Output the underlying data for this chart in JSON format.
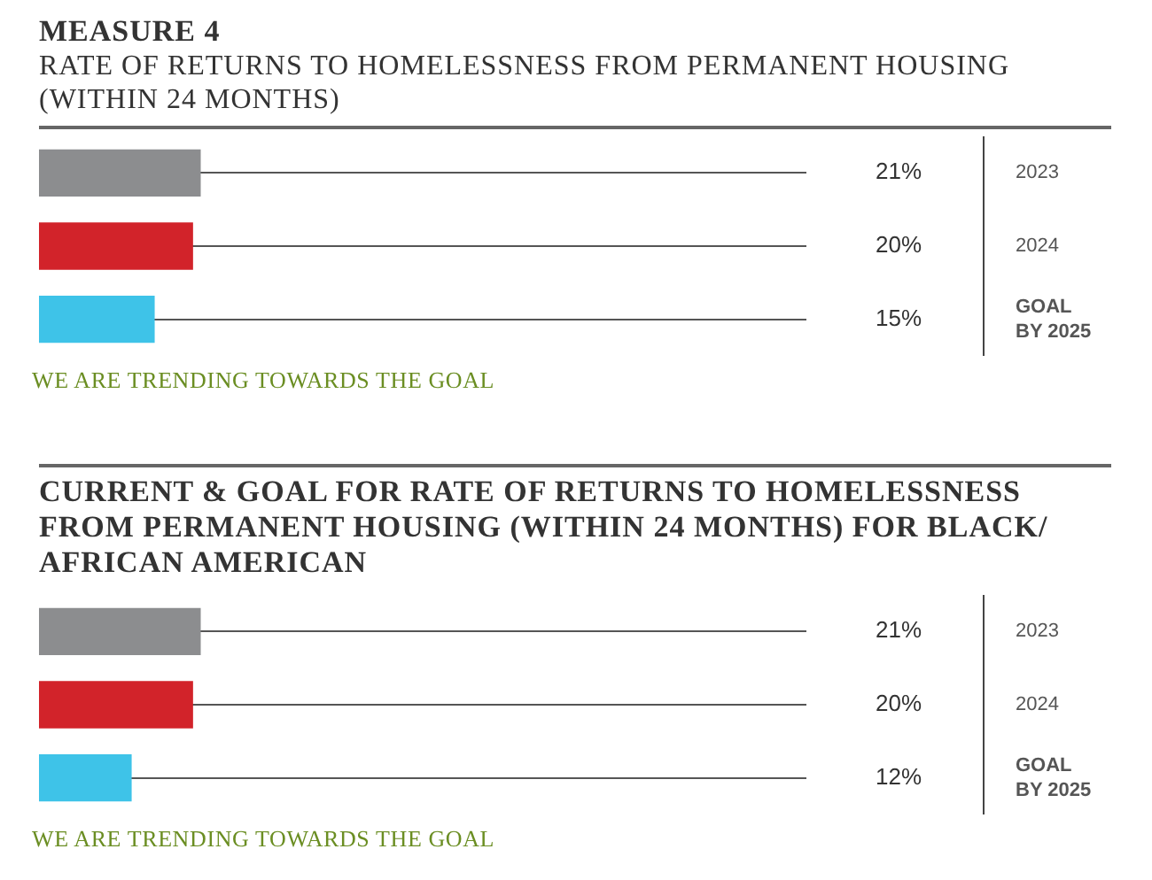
{
  "chart_data": [
    {
      "type": "bar",
      "orientation": "horizontal",
      "title": "MEASURE 4",
      "subtitle": "RATE OF RETURNS TO HOMELESSNESS FROM PERMANENT HOUSING (WITHIN 24 MONTHS)",
      "categories": [
        "2023",
        "2024",
        "GOAL BY 2025"
      ],
      "values": [
        21,
        20,
        15
      ],
      "colors": [
        "#8c8d8f",
        "#d2232a",
        "#3ec3e8"
      ],
      "xlim": [
        0,
        100
      ],
      "tick_labels": "y",
      "grid": "y",
      "data_labels": true,
      "value_labels": [
        "21%",
        "20%",
        "15%"
      ],
      "annotations": [
        "WE ARE TRENDING TOWARDS THE GOAL"
      ]
    },
    {
      "type": "bar",
      "orientation": "horizontal",
      "title": "CURRENT & GOAL FOR RATE OF RETURNS TO HOMELESSNESS FROM PERMANENT HOUSING (WITHIN 24 MONTHS) FOR BLACK/ AFRICAN AMERICAN",
      "categories": [
        "2023",
        "2024",
        "GOAL BY 2025"
      ],
      "values": [
        21,
        20,
        12
      ],
      "colors": [
        "#8c8d8f",
        "#d2232a",
        "#3ec3e8"
      ],
      "xlim": [
        0,
        100
      ],
      "tick_labels": "y",
      "grid": "y",
      "data_labels": true,
      "value_labels": [
        "21%",
        "20%",
        "12%"
      ],
      "annotations": [
        "WE ARE TRENDING TOWARDS THE GOAL"
      ]
    }
  ]
}
